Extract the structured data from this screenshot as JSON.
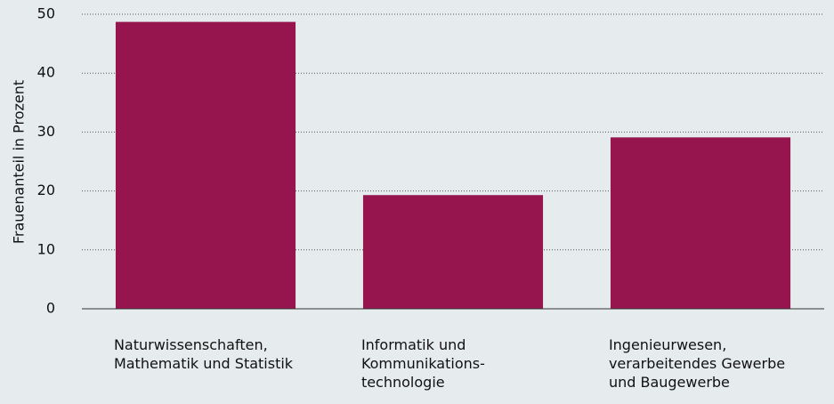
{
  "chart_data": {
    "type": "bar",
    "y_label": "Frauenanteil in Prozent",
    "categories": [
      [
        "Naturwissenschaften,",
        "Mathematik und Statistik"
      ],
      [
        "Informatik und",
        "Kommunikations-",
        "technologie"
      ],
      [
        "Ingenieurwesen,",
        "verarbeitendes Gewerbe",
        "und Baugewerbe"
      ]
    ],
    "values": [
      48.7,
      19.3,
      29.1
    ],
    "color": "#96154f",
    "ylim": [
      0,
      50
    ],
    "yticks": [
      0,
      10,
      20,
      30,
      40,
      50
    ],
    "grid": true
  }
}
